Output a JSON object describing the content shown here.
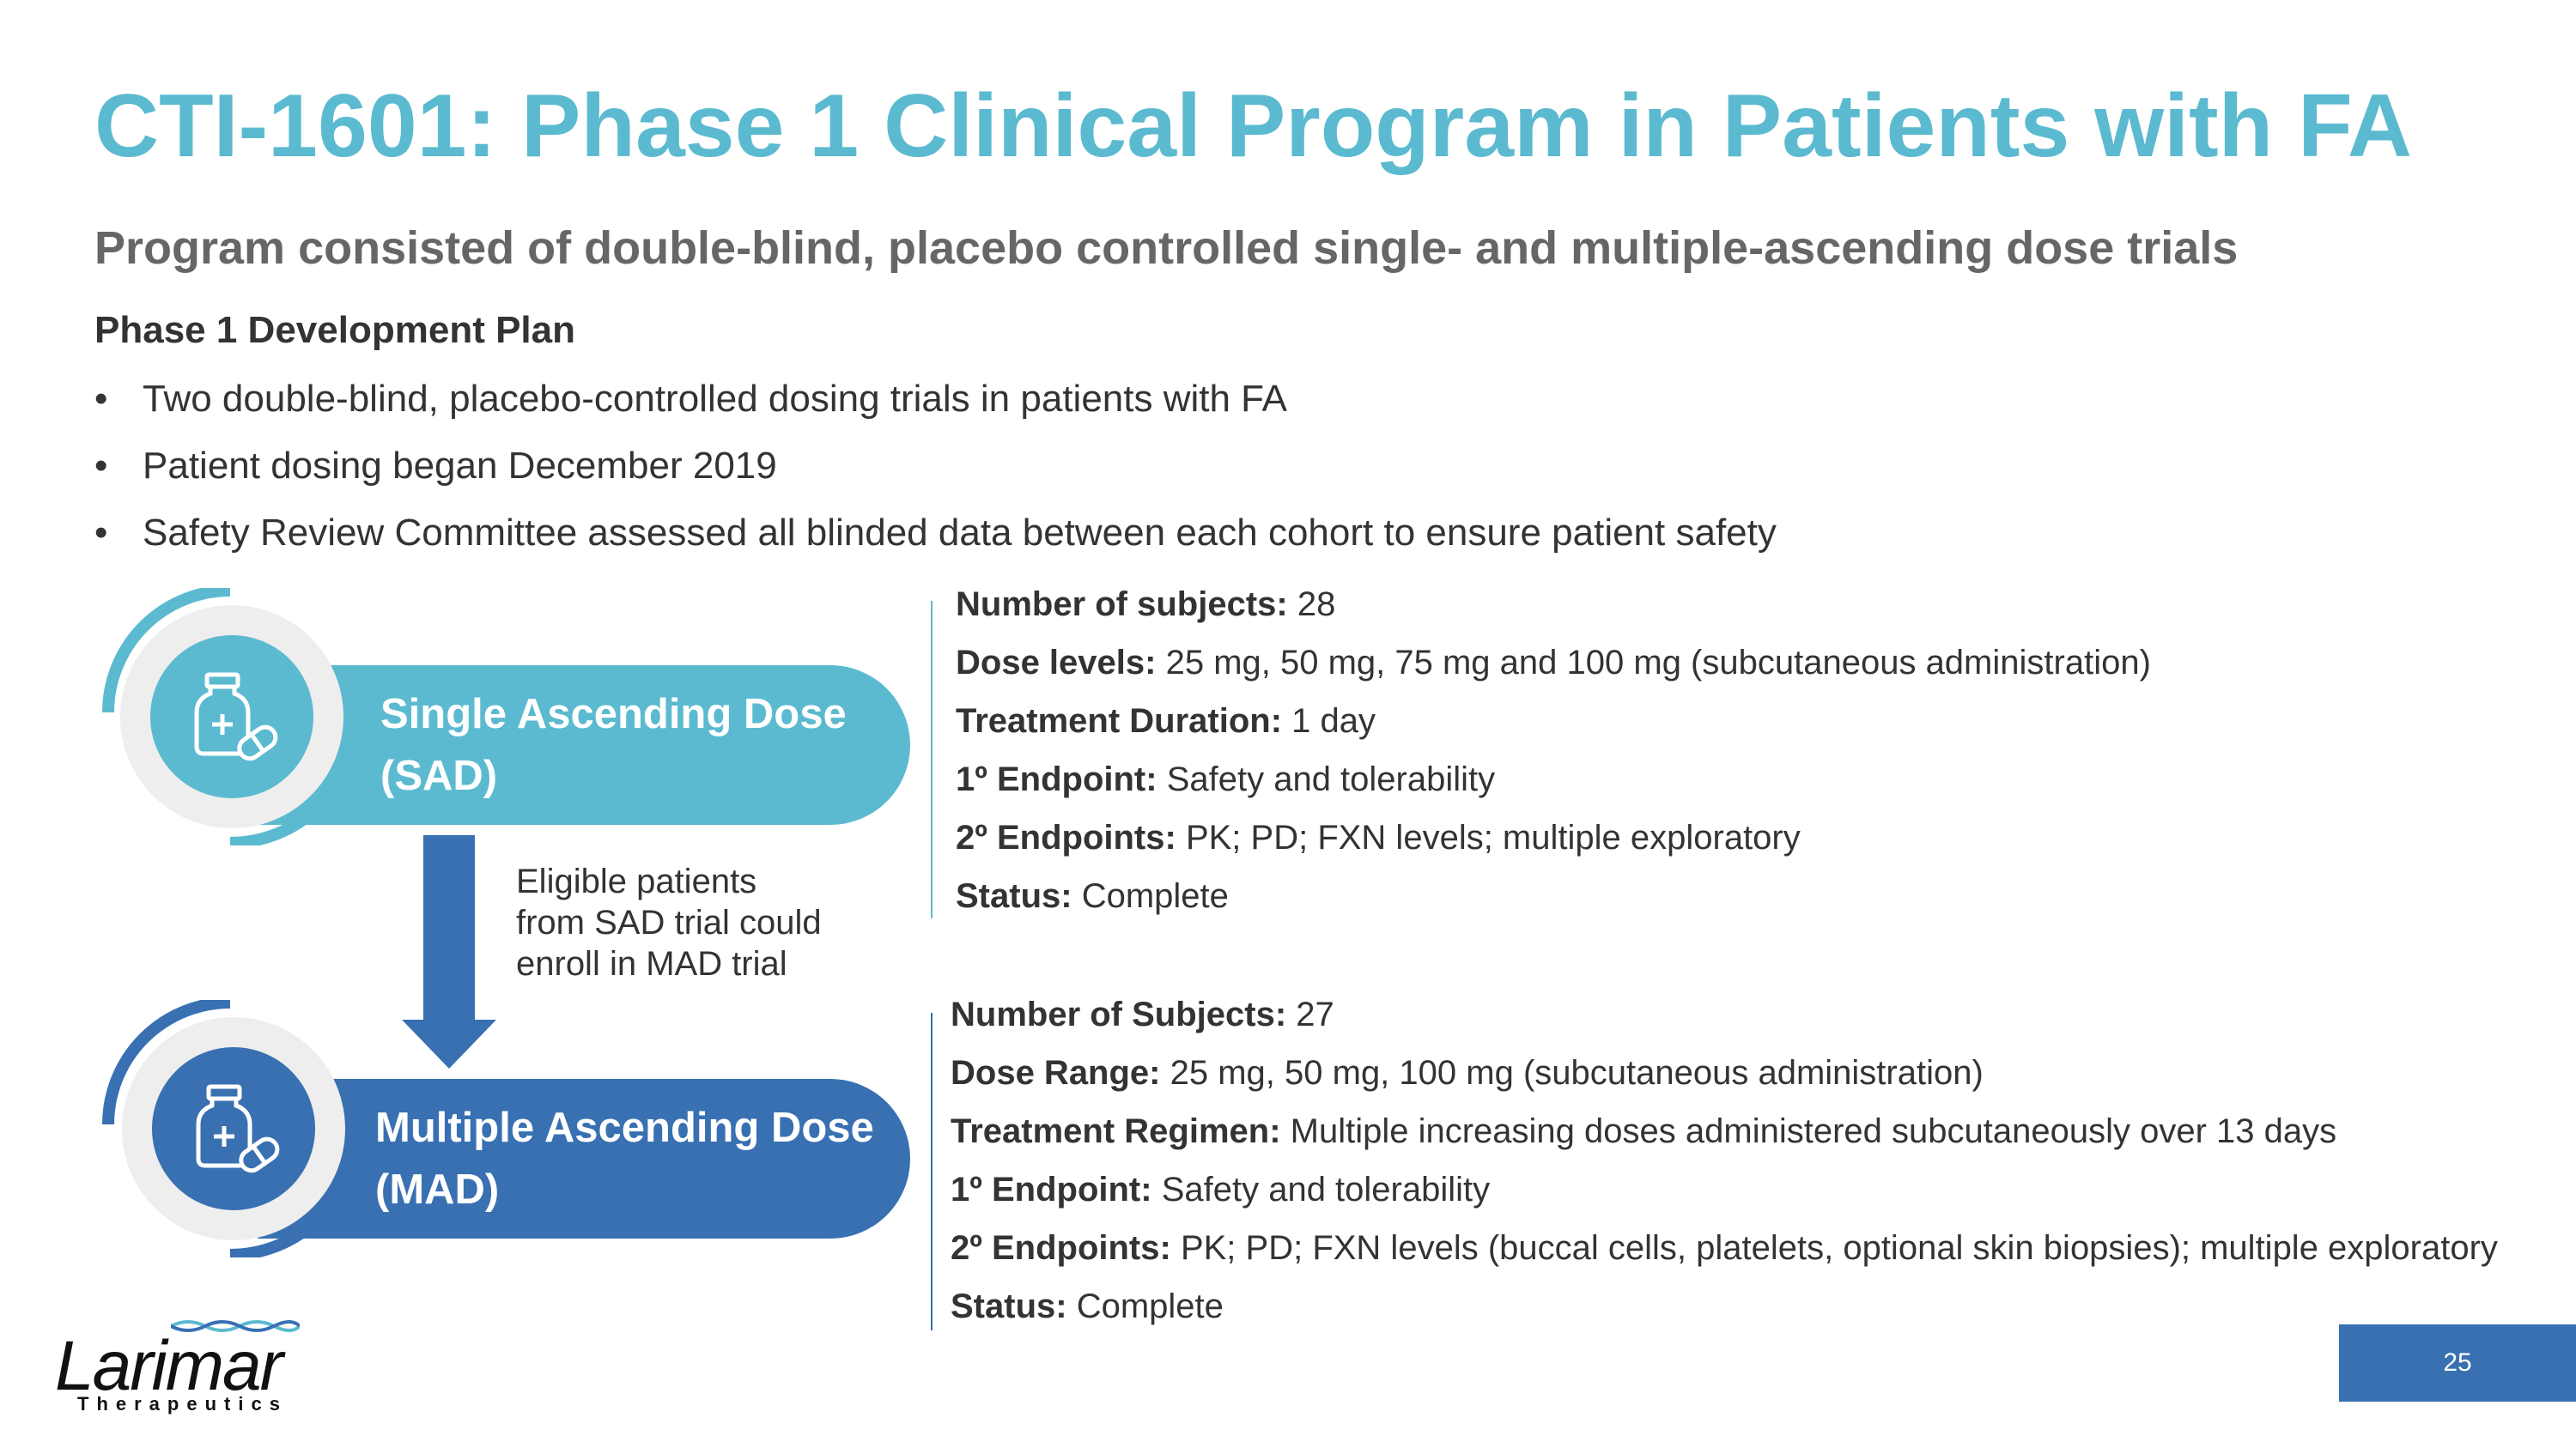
{
  "title": "CTI-1601: Phase 1 Clinical Program in Patients with FA",
  "subtitle": "Program consisted of double-blind, placebo controlled single- and multiple-ascending dose trials",
  "plan": {
    "heading": "Phase 1 Development Plan",
    "bullets": [
      "Two double-blind, placebo-controlled dosing trials in patients with FA",
      "Patient dosing began December 2019",
      "Safety Review Committee assessed all blinded data between each cohort to ensure patient safety"
    ],
    "bullet_glyph": "•"
  },
  "sad": {
    "line1": "Single Ascending Dose",
    "line2": "(SAD)",
    "icon": "medicine-bottle-pill-icon",
    "color": "#5bbad0",
    "details": [
      {
        "label": "Number of subjects:",
        "value": " 28"
      },
      {
        "label": "Dose levels:",
        "value": " 25 mg, 50 mg, 75 mg and 100 mg (subcutaneous administration)"
      },
      {
        "label": "Treatment Duration:",
        "value": " 1 day"
      },
      {
        "label": "1º Endpoint:",
        "value": " Safety and tolerability"
      },
      {
        "label": "2º  Endpoints:",
        "value": " PK; PD; FXN levels; multiple exploratory"
      },
      {
        "label": "Status:",
        "value": " Complete"
      }
    ]
  },
  "transition_note": [
    "Eligible patients",
    "from SAD trial could",
    "enroll in MAD trial"
  ],
  "mad": {
    "line1": "Multiple Ascending Dose",
    "line2": "(MAD)",
    "icon": "medicine-bottle-pill-icon",
    "color": "#3870b2",
    "details": [
      {
        "label": "Number of Subjects:",
        "value": " 27"
      },
      {
        "label": "Dose Range:",
        "value": " 25 mg, 50 mg, 100 mg (subcutaneous administration)"
      },
      {
        "label": "Treatment Regimen:",
        "value": " Multiple increasing doses administered subcutaneously over 13 days"
      },
      {
        "label": "1º Endpoint:",
        "value": " Safety and tolerability"
      },
      {
        "label": "2º  Endpoints:",
        "value": " PK; PD; FXN levels (buccal cells, platelets, optional skin biopsies); multiple exploratory"
      },
      {
        "label": "Status:",
        "value": " Complete"
      }
    ]
  },
  "logo": {
    "word": "Larimar",
    "sub": "Therapeutics"
  },
  "page_number": "25"
}
